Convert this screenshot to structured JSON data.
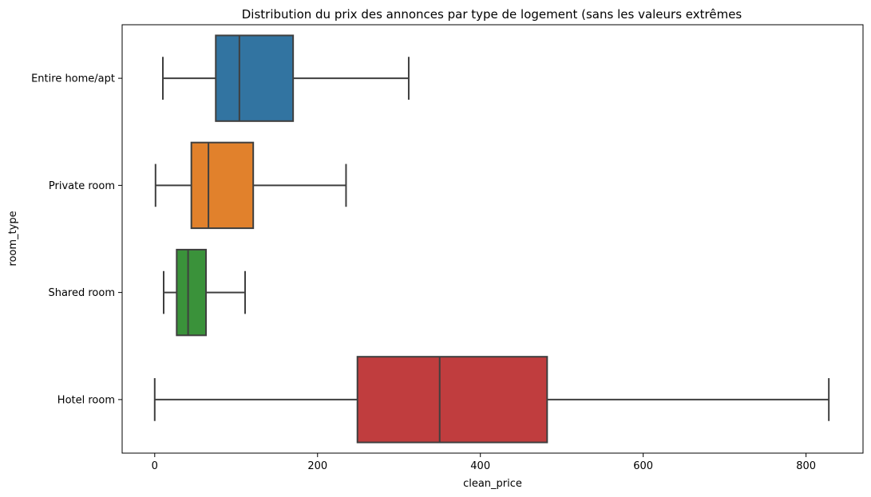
{
  "chart_data": {
    "type": "box",
    "orientation": "horizontal",
    "title": "Distribution du prix des annonces par type de logement (sans les valeurs extrêmes",
    "xlabel": "clean_price",
    "ylabel": "room_type",
    "xlim": [
      -40,
      870
    ],
    "xticks": [
      0,
      200,
      400,
      600,
      800
    ],
    "grid": false,
    "categories": [
      "Entire home/apt",
      "Private room",
      "Shared room",
      "Hotel room"
    ],
    "boxes": [
      {
        "category": "Entire home/apt",
        "whisker_low": 10,
        "q1": 75,
        "median": 104,
        "q3": 170,
        "whisker_high": 312,
        "color": "#3274a1"
      },
      {
        "category": "Private room",
        "whisker_low": 1,
        "q1": 45,
        "median": 66,
        "q3": 121,
        "whisker_high": 235,
        "color": "#e1812c"
      },
      {
        "category": "Shared room",
        "whisker_low": 11,
        "q1": 27,
        "median": 41,
        "q3": 63,
        "whisker_high": 111,
        "color": "#3a923a"
      },
      {
        "category": "Hotel room",
        "whisker_low": 0,
        "q1": 249,
        "median": 350,
        "q3": 482,
        "whisker_high": 828,
        "color": "#c03d3e"
      }
    ]
  }
}
